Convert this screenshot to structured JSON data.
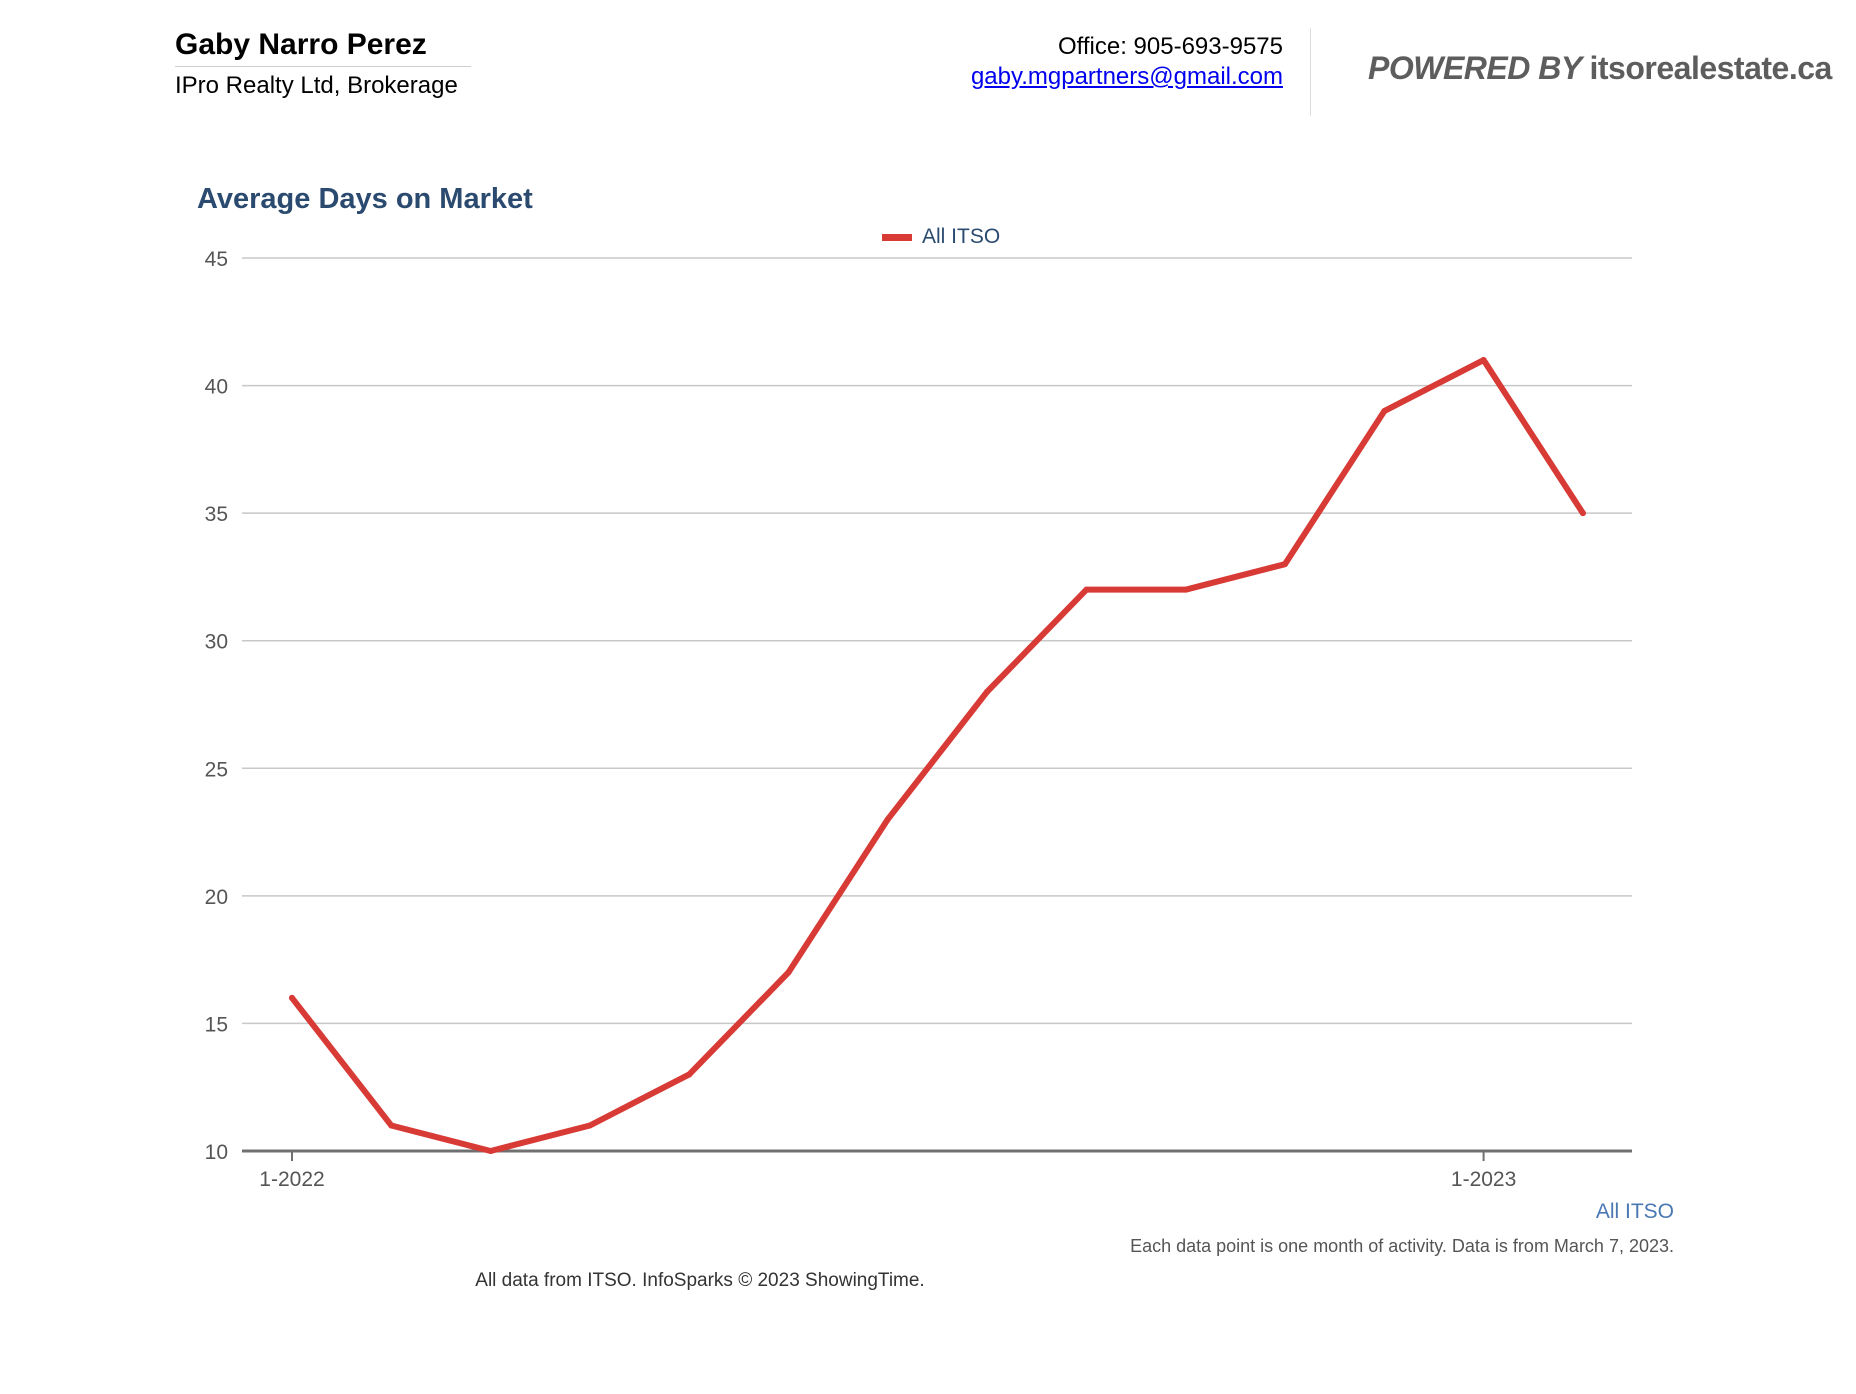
{
  "agent": {
    "name": "Gaby Narro Perez",
    "company": "IPro Realty Ltd, Brokerage"
  },
  "contact": {
    "office": "Office: 905-693-9575",
    "email": "gaby.mgpartners@gmail.com"
  },
  "powered_by": {
    "prefix": "POWERED BY ",
    "brand": "itsorealestate.ca"
  },
  "chart_data": {
    "type": "line",
    "title": "Average Days on Market",
    "legend": [
      "All ITSO"
    ],
    "legend_position": "top-center",
    "x": [
      "1-2022",
      "2-2022",
      "3-2022",
      "4-2022",
      "5-2022",
      "6-2022",
      "7-2022",
      "8-2022",
      "9-2022",
      "10-2022",
      "11-2022",
      "12-2022",
      "1-2023",
      "2-2023"
    ],
    "x_tick_labels": [
      "1-2022",
      "1-2023"
    ],
    "series": [
      {
        "name": "All ITSO",
        "color": "#d83a35",
        "values": [
          16,
          11,
          10,
          11,
          13,
          17,
          23,
          28,
          32,
          32,
          33,
          39,
          41,
          35
        ]
      }
    ],
    "ylim": [
      10,
      45
    ],
    "yticks": [
      10,
      15,
      20,
      25,
      30,
      35,
      40,
      45
    ],
    "grid": true,
    "series_label_below": "All ITSO",
    "note": "Each data point is one month of activity. Data is from March 7, 2023."
  },
  "footer": "All data from ITSO. InfoSparks © 2023 ShowingTime."
}
